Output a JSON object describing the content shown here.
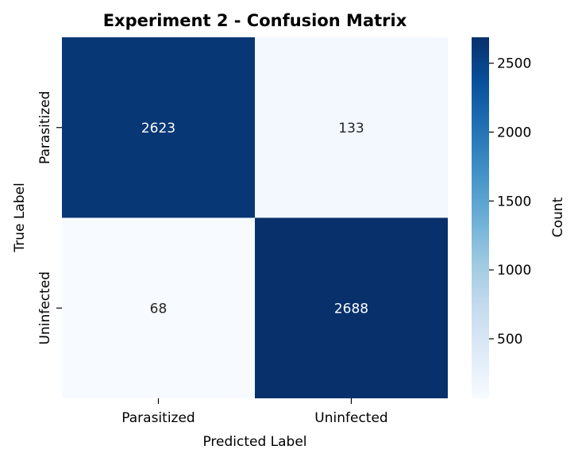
{
  "chart_data": {
    "type": "heatmap",
    "title": "Experiment 2 - Confusion Matrix",
    "xlabel": "Predicted Label",
    "ylabel": "True Label",
    "x_categories": [
      "Parasitized",
      "Uninfected"
    ],
    "y_categories": [
      "Parasitized",
      "Uninfected"
    ],
    "values": [
      [
        2623,
        133
      ],
      [
        68,
        2688
      ]
    ],
    "colorbar": {
      "label": "Count",
      "ticks": [
        500,
        1000,
        1500,
        2000,
        2500
      ],
      "range": [
        68,
        2688
      ],
      "colormap": "Blues"
    },
    "colors": {
      "low": "#f7fbff",
      "high": "#08306b",
      "text_dark": "#262626",
      "text_light": "#ffffff"
    }
  }
}
